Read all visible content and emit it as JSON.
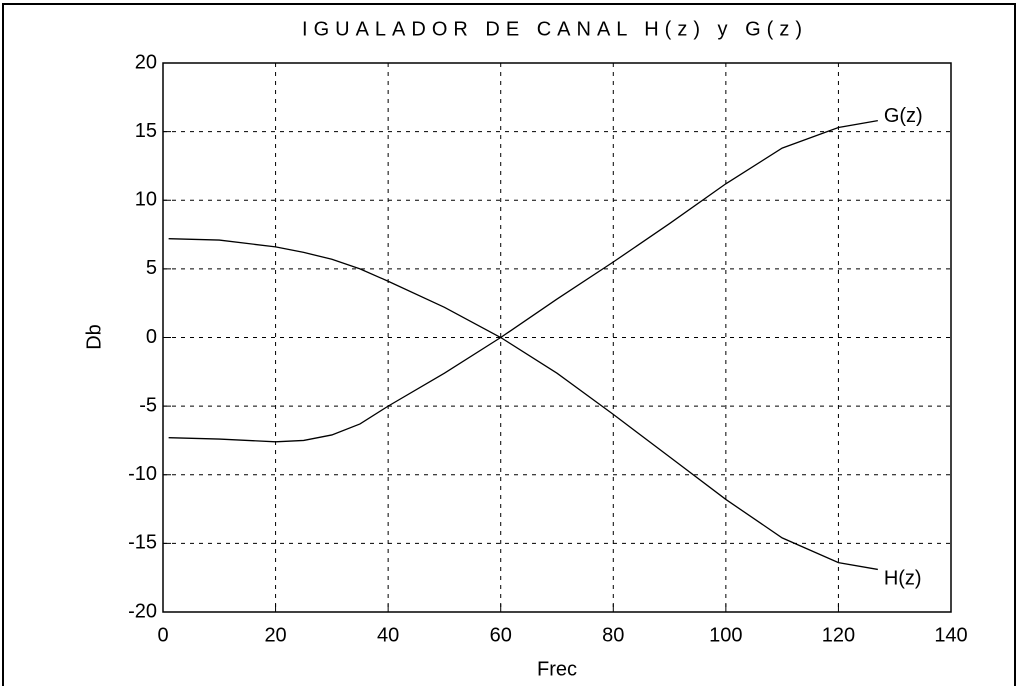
{
  "chart_data": {
    "type": "line",
    "title": "IGUALADOR DE CANAL H(z) y G(z)",
    "xlabel": "Frec",
    "ylabel": "Db",
    "x": [
      1,
      10,
      20,
      25,
      30,
      35,
      40,
      50,
      60,
      70,
      80,
      90,
      100,
      110,
      120,
      127
    ],
    "series": [
      {
        "name": "H(z)",
        "color": "#000000",
        "values": [
          7.2,
          7.1,
          6.6,
          6.2,
          5.7,
          5.0,
          4.1,
          2.2,
          0,
          -2.6,
          -5.6,
          -8.7,
          -11.8,
          -14.6,
          -16.4,
          -16.9
        ]
      },
      {
        "name": "G(z)",
        "color": "#000000",
        "values": [
          -7.3,
          -7.4,
          -7.6,
          -7.5,
          -7.1,
          -6.3,
          -5.0,
          -2.6,
          0,
          2.8,
          5.5,
          8.3,
          11.2,
          13.8,
          15.3,
          15.8
        ]
      }
    ],
    "xlim": [
      0,
      140
    ],
    "xticks": [
      0,
      20,
      40,
      60,
      80,
      100,
      120,
      140
    ],
    "ylim": [
      -20,
      20
    ],
    "yticks": [
      -20,
      -15,
      -10,
      -5,
      0,
      5,
      10,
      15,
      20
    ],
    "grid": true
  }
}
